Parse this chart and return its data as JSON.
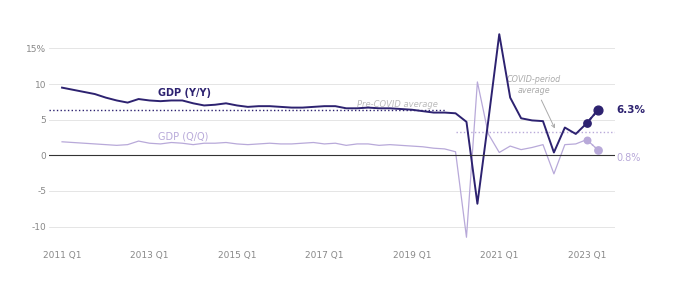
{
  "background_color": "#ffffff",
  "yy_color": "#2d2270",
  "qq_color": "#b8a9d9",
  "pre_covid_avg": 6.3,
  "covid_period_avg": 3.3,
  "pre_covid_dotted_color": "#2d2270",
  "annotation_color": "#999999",
  "label_yy": "GDP (Y/Y)",
  "label_qq": "GDP (Q/Q)",
  "label_pre": "Pre-COVID average",
  "label_covid": "COVID-period\naverage",
  "end_label_yy": "6.3%",
  "end_label_qq": "0.8%",
  "yticks": [
    -10,
    -5,
    0,
    5,
    10,
    15
  ],
  "ytick_labels": [
    "-10",
    "-5",
    "0",
    "5",
    "10",
    "15%"
  ],
  "ylim": [
    -13,
    19
  ],
  "grid_color": "#e0e0e0",
  "zero_line_color": "#333333",
  "yy_x": [
    2011.0,
    2011.25,
    2011.5,
    2011.75,
    2012.0,
    2012.25,
    2012.5,
    2012.75,
    2013.0,
    2013.25,
    2013.5,
    2013.75,
    2014.0,
    2014.25,
    2014.5,
    2014.75,
    2015.0,
    2015.25,
    2015.5,
    2015.75,
    2016.0,
    2016.25,
    2016.5,
    2016.75,
    2017.0,
    2017.25,
    2017.5,
    2017.75,
    2018.0,
    2018.25,
    2018.5,
    2018.75,
    2019.0,
    2019.25,
    2019.5,
    2019.75,
    2020.0,
    2020.25,
    2020.5,
    2020.75,
    2021.0,
    2021.25,
    2021.5,
    2021.75,
    2022.0,
    2022.25,
    2022.5,
    2022.75,
    2023.0,
    2023.25
  ],
  "yy_y": [
    9.5,
    9.2,
    8.9,
    8.6,
    8.1,
    7.7,
    7.4,
    7.9,
    7.7,
    7.6,
    7.7,
    7.7,
    7.3,
    7.0,
    7.1,
    7.3,
    7.0,
    6.8,
    6.9,
    6.9,
    6.8,
    6.7,
    6.7,
    6.8,
    6.9,
    6.9,
    6.6,
    6.6,
    6.7,
    6.6,
    6.6,
    6.5,
    6.4,
    6.2,
    6.0,
    6.0,
    5.9,
    4.7,
    -6.8,
    4.9,
    17.0,
    8.1,
    5.2,
    4.9,
    4.8,
    0.4,
    3.9,
    3.0,
    4.5,
    6.3
  ],
  "qq_x": [
    2011.0,
    2011.25,
    2011.5,
    2011.75,
    2012.0,
    2012.25,
    2012.5,
    2012.75,
    2013.0,
    2013.25,
    2013.5,
    2013.75,
    2014.0,
    2014.25,
    2014.5,
    2014.75,
    2015.0,
    2015.25,
    2015.5,
    2015.75,
    2016.0,
    2016.25,
    2016.5,
    2016.75,
    2017.0,
    2017.25,
    2017.5,
    2017.75,
    2018.0,
    2018.25,
    2018.5,
    2018.75,
    2019.0,
    2019.25,
    2019.5,
    2019.75,
    2020.0,
    2020.25,
    2020.5,
    2020.75,
    2021.0,
    2021.25,
    2021.5,
    2021.75,
    2022.0,
    2022.25,
    2022.5,
    2022.75,
    2023.0,
    2023.25
  ],
  "qq_y": [
    1.9,
    1.8,
    1.7,
    1.6,
    1.5,
    1.4,
    1.5,
    2.0,
    1.7,
    1.6,
    1.8,
    1.7,
    1.5,
    1.7,
    1.7,
    1.8,
    1.6,
    1.5,
    1.6,
    1.7,
    1.6,
    1.6,
    1.7,
    1.8,
    1.6,
    1.7,
    1.4,
    1.6,
    1.6,
    1.4,
    1.5,
    1.4,
    1.3,
    1.2,
    1.0,
    0.9,
    0.5,
    -11.5,
    10.3,
    3.0,
    0.4,
    1.3,
    0.8,
    1.1,
    1.5,
    -2.6,
    1.5,
    1.6,
    2.2,
    0.8
  ],
  "xticks": [
    2011.0,
    2013.0,
    2015.0,
    2017.0,
    2019.0,
    2021.0,
    2023.0
  ],
  "xtick_labels": [
    "2011 Q1",
    "2013 Q1",
    "2015 Q1",
    "2017 Q1",
    "2019 Q1",
    "2021 Q1",
    "2023 Q1"
  ],
  "xlim": [
    2010.7,
    2023.65
  ]
}
